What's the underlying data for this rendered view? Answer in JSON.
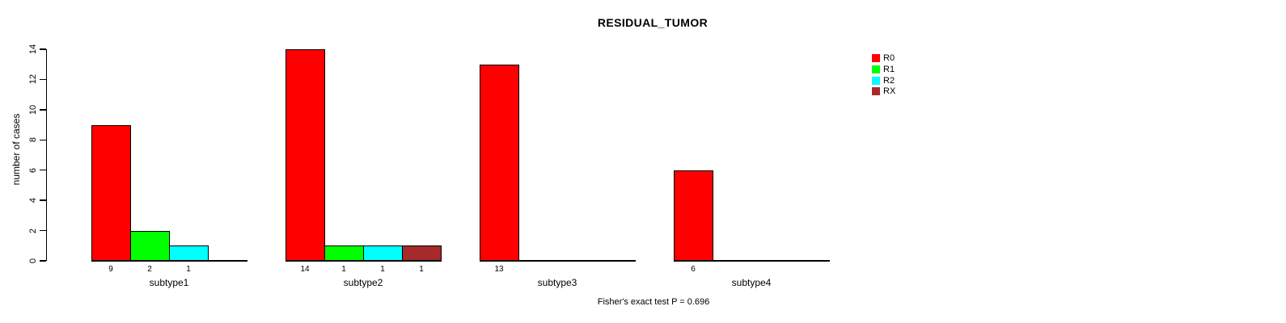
{
  "chart": {
    "title": "RESIDUAL_TUMOR",
    "ylabel": "number of cases",
    "footnote": "Fisher's exact test P = 0.696"
  },
  "chart_data": {
    "type": "bar",
    "grouped": true,
    "title": "RESIDUAL_TUMOR",
    "xlabel": "",
    "ylabel": "number of cases",
    "annotation": "Fisher's exact test P = 0.696",
    "categories": [
      "subtype1",
      "subtype2",
      "subtype3",
      "subtype4"
    ],
    "series": [
      {
        "name": "R0",
        "color": "#FF0000",
        "values": [
          9,
          14,
          13,
          6
        ]
      },
      {
        "name": "R1",
        "color": "#00FF00",
        "values": [
          2,
          1,
          0,
          0
        ]
      },
      {
        "name": "R2",
        "color": "#00FFFF",
        "values": [
          1,
          1,
          0,
          0
        ]
      },
      {
        "name": "RX",
        "color": "#A52A2A",
        "values": [
          0,
          1,
          0,
          0
        ]
      }
    ],
    "ylim": [
      0,
      14
    ],
    "yticks": [
      0,
      2,
      4,
      6,
      8,
      10,
      12,
      14
    ],
    "bar_value_labels": true,
    "hide_zero_bars": true,
    "grid": false,
    "legend": {
      "position": "right",
      "entries": [
        "R0",
        "R1",
        "R2",
        "RX"
      ],
      "colors": [
        "#FF0000",
        "#00FF00",
        "#00FFFF",
        "#A52A2A"
      ]
    }
  }
}
